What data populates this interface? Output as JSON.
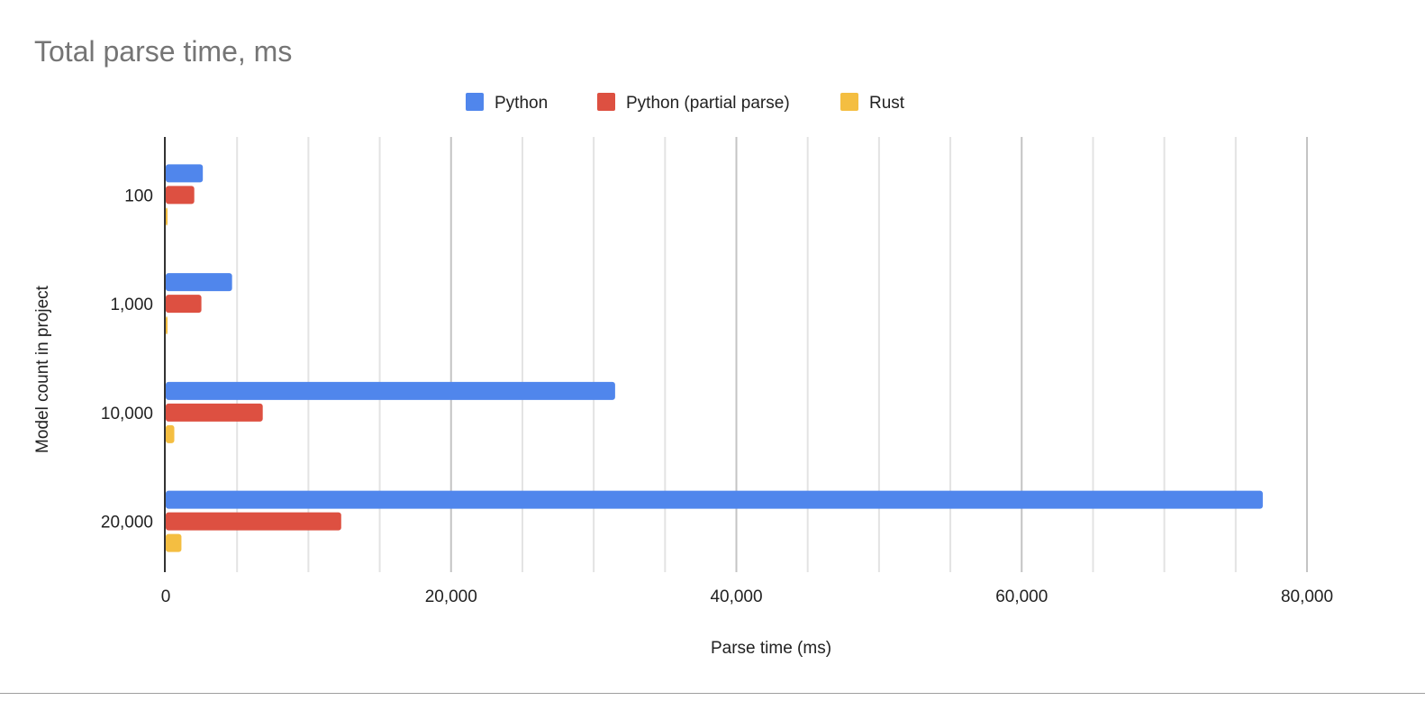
{
  "chart_data": {
    "type": "bar",
    "orientation": "horizontal",
    "title": "Total parse time, ms",
    "xlabel": "Parse time (ms)",
    "ylabel": "Model count in project",
    "categories": [
      "100",
      "1,000",
      "10,000",
      "20,000"
    ],
    "series": [
      {
        "name": "Python",
        "color": "#5086ec",
        "values": [
          2600,
          4650,
          31500,
          76900
        ]
      },
      {
        "name": "Python (partial parse)",
        "color": "#dd5041",
        "values": [
          2000,
          2500,
          6800,
          12300
        ]
      },
      {
        "name": "Rust",
        "color": "#f4be41",
        "values": [
          80,
          80,
          600,
          1100
        ]
      }
    ],
    "xlim": [
      0,
      80000
    ],
    "xticks": [
      "0",
      "20,000",
      "40,000",
      "60,000",
      "80,000"
    ],
    "xtick_values": [
      0,
      20000,
      40000,
      60000,
      80000
    ],
    "minor_grid_step": 5000,
    "grid": true,
    "legend": "top"
  }
}
